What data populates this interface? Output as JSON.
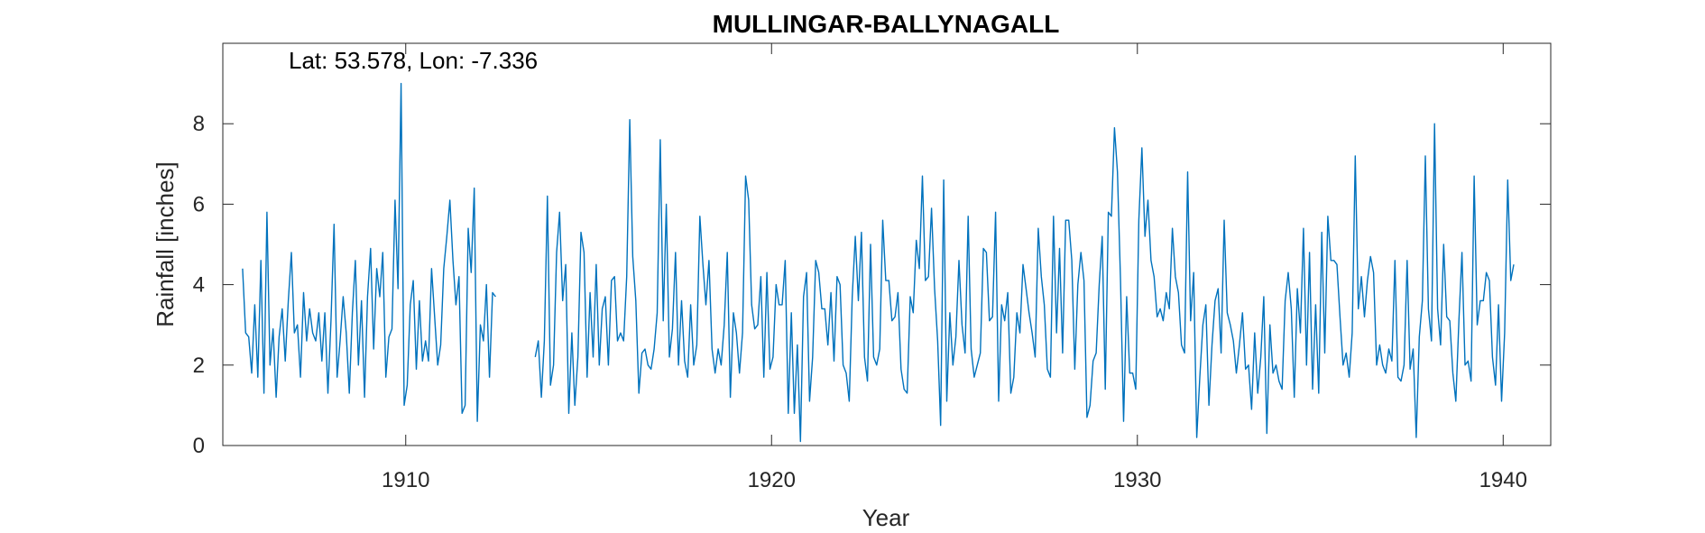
{
  "chart_data": {
    "type": "line",
    "title": "MULLINGAR-BALLYNAGALL",
    "subtitle": "",
    "xlabel": "Year",
    "ylabel": "Rainfall [inches]",
    "annotation": "Lat: 53.578, Lon: -7.336",
    "xlim": [
      1905.0,
      1941.3
    ],
    "ylim": [
      0,
      10
    ],
    "xticks": [
      1910,
      1920,
      1930,
      1940
    ],
    "yticks": [
      0,
      2,
      4,
      6,
      8
    ],
    "grid": false,
    "line_color": "#0072BD",
    "start": 1905.54,
    "step": 0.0833333,
    "gap": [
      1912.5,
      1913.5
    ],
    "values": [
      4.4,
      2.8,
      2.7,
      1.8,
      3.5,
      1.7,
      4.6,
      1.3,
      5.8,
      2.0,
      2.9,
      1.2,
      2.7,
      3.4,
      2.1,
      3.6,
      4.8,
      2.8,
      3.0,
      1.7,
      3.8,
      2.6,
      3.4,
      2.8,
      2.6,
      3.3,
      2.1,
      3.3,
      1.3,
      3.1,
      5.5,
      1.7,
      2.6,
      3.7,
      2.8,
      1.3,
      3.3,
      4.6,
      2.0,
      3.6,
      1.2,
      3.7,
      4.9,
      2.4,
      4.4,
      3.7,
      4.8,
      1.7,
      2.7,
      2.9,
      6.1,
      3.9,
      9.0,
      1.0,
      1.5,
      3.5,
      4.1,
      1.9,
      3.6,
      2.1,
      2.6,
      2.1,
      4.4,
      3.2,
      2.0,
      2.5,
      4.4,
      5.2,
      6.1,
      4.6,
      3.5,
      4.2,
      0.8,
      1.0,
      5.4,
      4.3,
      6.4,
      0.6,
      3.0,
      2.6,
      4.0,
      1.7,
      3.8,
      3.7,
      2.2,
      2.6,
      1.2,
      2.6,
      6.2,
      1.5,
      2.0,
      4.8,
      5.8,
      3.6,
      4.5,
      0.8,
      2.8,
      1.0,
      2.2,
      5.3,
      4.8,
      1.7,
      3.8,
      2.2,
      4.5,
      2.0,
      3.4,
      3.7,
      2.0,
      4.1,
      4.2,
      2.6,
      2.8,
      2.6,
      4.2,
      8.1,
      4.7,
      3.6,
      1.3,
      2.3,
      2.4,
      2.0,
      1.9,
      2.4,
      3.3,
      7.6,
      3.1,
      6.0,
      2.2,
      2.9,
      4.8,
      2.0,
      3.6,
      2.1,
      1.7,
      3.5,
      2.0,
      2.5,
      5.7,
      4.5,
      3.5,
      4.6,
      2.4,
      1.8,
      2.4,
      2.0,
      3.0,
      4.8,
      1.2,
      3.3,
      2.8,
      1.8,
      2.8,
      6.7,
      6.1,
      3.5,
      2.9,
      3.0,
      4.2,
      1.7,
      4.3,
      1.9,
      2.2,
      4.0,
      3.5,
      3.5,
      4.6,
      0.8,
      3.3,
      0.8,
      2.5,
      0.1,
      3.7,
      4.3,
      1.1,
      2.2,
      4.6,
      4.3,
      3.4,
      3.4,
      2.5,
      3.8,
      2.1,
      4.2,
      4.0,
      2.0,
      1.8,
      1.1,
      3.7,
      5.2,
      3.6,
      5.3,
      2.2,
      1.6,
      5.0,
      2.2,
      2.0,
      2.4,
      5.6,
      4.1,
      4.1,
      3.1,
      3.2,
      3.8,
      1.9,
      1.4,
      1.3,
      3.7,
      3.3,
      5.1,
      4.4,
      6.7,
      4.1,
      4.2,
      5.9,
      3.9,
      2.6,
      0.5,
      6.6,
      1.1,
      3.3,
      2.0,
      2.7,
      4.6,
      3.0,
      2.3,
      5.7,
      2.4,
      1.7,
      2.0,
      2.3,
      4.9,
      4.8,
      3.1,
      3.2,
      5.8,
      1.1,
      3.5,
      3.1,
      3.8,
      1.3,
      1.7,
      3.3,
      2.8,
      4.5,
      3.9,
      3.3,
      2.8,
      2.2,
      5.4,
      4.2,
      3.5,
      1.9,
      1.7,
      5.7,
      2.8,
      4.9,
      2.3,
      5.6,
      5.6,
      4.6,
      1.9,
      4.0,
      4.8,
      4.1,
      0.7,
      1.0,
      2.1,
      2.3,
      4.0,
      5.2,
      1.4,
      5.8,
      5.7,
      7.9,
      6.8,
      4.1,
      0.6,
      3.7,
      1.8,
      1.8,
      1.4,
      5.6,
      7.4,
      5.2,
      6.1,
      4.6,
      4.2,
      3.2,
      3.4,
      3.1,
      3.8,
      3.4,
      5.4,
      4.2,
      3.8,
      2.5,
      2.3,
      6.8,
      3.1,
      4.3,
      0.2,
      1.7,
      3.0,
      3.5,
      1.0,
      2.5,
      3.6,
      3.9,
      2.3,
      5.6,
      3.3,
      3.0,
      2.6,
      1.8,
      2.5,
      3.3,
      1.9,
      2.0,
      0.9,
      2.8,
      1.3,
      2.2,
      3.7,
      0.3,
      3.0,
      1.8,
      2.0,
      1.6,
      1.4,
      3.6,
      4.3,
      3.4,
      1.2,
      3.9,
      2.8,
      5.4,
      2.0,
      4.8,
      1.4,
      3.5,
      1.3,
      5.3,
      2.3,
      5.7,
      4.6,
      4.6,
      4.5,
      3.2,
      2.0,
      2.3,
      1.7,
      2.8,
      7.2,
      3.4,
      4.2,
      3.2,
      4.1,
      4.7,
      4.3,
      2.0,
      2.5,
      2.0,
      1.8,
      2.4,
      2.1,
      4.6,
      1.7,
      1.6,
      2.0,
      4.6,
      1.9,
      2.4,
      0.2,
      2.7,
      3.6,
      7.2,
      3.4,
      2.6,
      8.0,
      3.4,
      2.5,
      5.0,
      3.2,
      3.1,
      1.8,
      1.1,
      3.1,
      4.8,
      2.0,
      2.1,
      1.6,
      6.7,
      3.0,
      3.6,
      3.6,
      4.3,
      4.1,
      2.2,
      1.5,
      3.5,
      1.1,
      2.8,
      6.6,
      4.1,
      4.5
    ]
  }
}
